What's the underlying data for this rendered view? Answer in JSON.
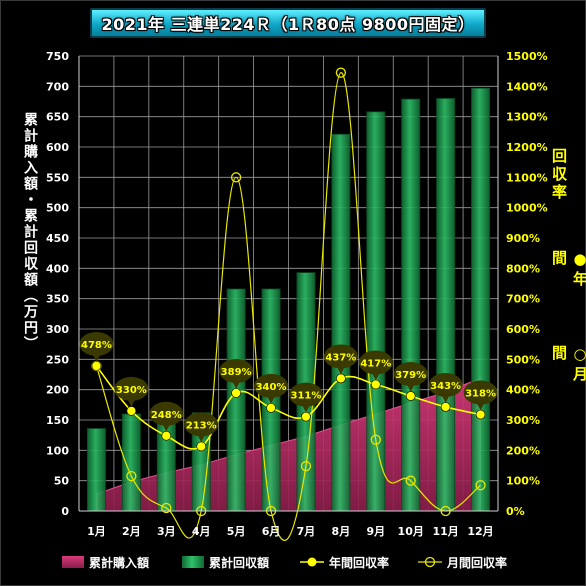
{
  "title": "2021年 三連単224Ｒ（1Ｒ80点 9800円固定）",
  "left_axis_label": "累計購入額・累計回収額（万円）",
  "right_axis_label_1": "回収率",
  "right_axis_label_2": "●年間",
  "right_axis_label_3": "○月間",
  "colors": {
    "purchase": "#c0306a",
    "return": "#1a9a4a",
    "annual_line": "#ffff00",
    "monthly_line": "#e8e800",
    "bubble": "#3a3a00",
    "bubble_text": "#ffff00",
    "left_tick": "#ffffff",
    "right_tick": "#ffff00"
  },
  "chart_data": {
    "type": "bar",
    "title": "2021年 三連単224Ｒ（1Ｒ80点 9800円固定）",
    "categories": [
      "1月",
      "2月",
      "3月",
      "4月",
      "5月",
      "6月",
      "7月",
      "8月",
      "9月",
      "10月",
      "11月",
      "12月"
    ],
    "ylabel": "累計購入額・累計回収額（万円）",
    "y2label": "回収率",
    "ylim": [
      0,
      750
    ],
    "y_ticks": [
      0,
      50,
      100,
      150,
      200,
      250,
      300,
      350,
      400,
      450,
      500,
      550,
      600,
      650,
      700,
      750
    ],
    "y2lim": [
      0,
      1500
    ],
    "y2_ticks": [
      "0%",
      "100%",
      "200%",
      "300%",
      "400%",
      "500%",
      "600%",
      "700%",
      "800%",
      "900%",
      "1000%",
      "1100%",
      "1200%",
      "1300%",
      "1400%",
      "1500%"
    ],
    "grid": true,
    "legend_position": "bottom",
    "series": [
      {
        "name": "累計購入額",
        "kind": "area",
        "axis": "left",
        "values": [
          28,
          48,
          63,
          76,
          93,
          108,
          123,
          142,
          160,
          178,
          196,
          219
        ]
      },
      {
        "name": "累計回収額",
        "kind": "bar",
        "axis": "left",
        "values": [
          136,
          160,
          157,
          162,
          366,
          366,
          393,
          621,
          658,
          679,
          680,
          697
        ]
      },
      {
        "name": "年間回収率",
        "kind": "line",
        "marker": "filled-circle",
        "axis": "right",
        "values": [
          478,
          330,
          248,
          213,
          389,
          340,
          311,
          437,
          417,
          379,
          343,
          318
        ],
        "labels": [
          "478%",
          "330%",
          "248%",
          "213%",
          "389%",
          "340%",
          "311%",
          "437%",
          "417%",
          "379%",
          "343%",
          "318%"
        ]
      },
      {
        "name": "月間回収率",
        "kind": "line",
        "marker": "open-circle",
        "axis": "right",
        "values": [
          478,
          115,
          10,
          0,
          1100,
          0,
          148,
          1445,
          235,
          100,
          0,
          85
        ]
      }
    ]
  }
}
